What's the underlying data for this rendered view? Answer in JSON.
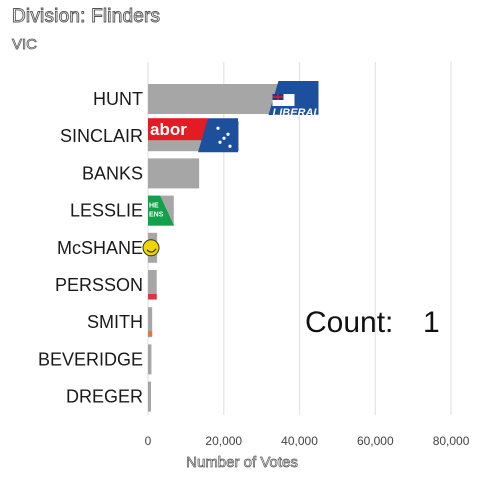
{
  "header": {
    "title": "Division: Flinders",
    "subtitle": "VIC"
  },
  "chart_data": {
    "type": "bar",
    "orientation": "horizontal",
    "categories": [
      "HUNT",
      "SINCLAIR",
      "BANKS",
      "LESSLIE",
      "McSHANE",
      "PERSSON",
      "SMITH",
      "BEVERIDGE",
      "DREGER"
    ],
    "values": [
      45000,
      24000,
      13500,
      6800,
      2400,
      2300,
      1100,
      900,
      800
    ],
    "xlabel": "Number of Votes",
    "xlim": [
      0,
      85000
    ],
    "xticks": [
      0,
      20000,
      40000,
      60000,
      80000
    ],
    "xtick_labels": [
      "0",
      "20,000",
      "40,000",
      "60,000",
      "80,000"
    ],
    "grid": true,
    "bar_color": "#a6a6a6",
    "party_logos": [
      {
        "candidate": "HUNT",
        "logo": "liberal-logo",
        "text": "LIBERAL",
        "color": "#1c4f9c"
      },
      {
        "candidate": "SINCLAIR",
        "logo": "labor-logo",
        "text": "abor",
        "color": "#e31b23"
      },
      {
        "candidate": "LESSLIE",
        "logo": "greens-logo",
        "text": "HE\nENS",
        "color": "#10a14a"
      },
      {
        "candidate": "McSHANE",
        "logo": "smiley-logo",
        "color": "#f2d400"
      },
      {
        "candidate": "PERSSON",
        "logo": "party-logo",
        "color": "#d9373f"
      },
      {
        "candidate": "SMITH",
        "logo": "party-logo",
        "color": "#e07a3a"
      }
    ],
    "annotation": {
      "label": "Count:",
      "value": "1"
    }
  }
}
